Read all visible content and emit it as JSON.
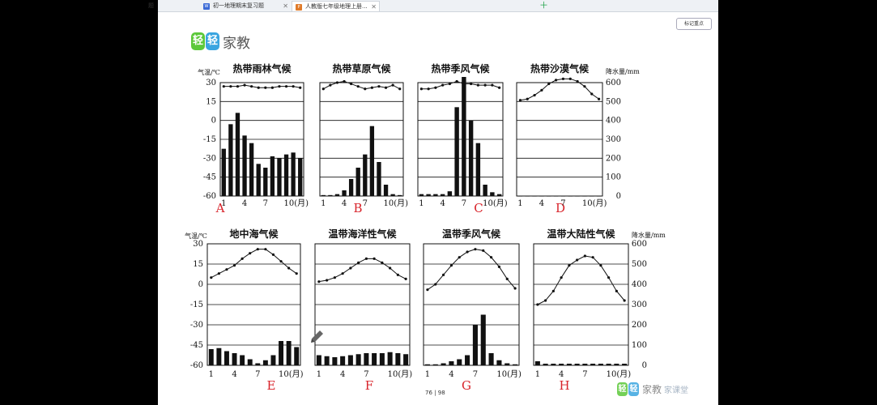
{
  "tabs": [
    {
      "label": "初一地理期末复习题",
      "icon": "W"
    },
    {
      "label": "人教版七年级地理上册...",
      "icon": "P"
    }
  ],
  "first_tab_fragment": "题",
  "mark_button_label": "标记重点",
  "logo": {
    "badge1": "轻",
    "badge2": "轻",
    "text": "家教"
  },
  "footer_logo": {
    "badge1": "轻",
    "badge2": "轻",
    "text": "家教",
    "text2": "家课堂"
  },
  "page_number": {
    "current": "76",
    "separator": "|",
    "total": "98"
  },
  "temp_label": "气温/℃",
  "precip_label": "降水量/mm",
  "month_unit_label": "10(月)",
  "temp_ticks": [
    "30",
    "15",
    "0",
    "-15",
    "-30",
    "-45",
    "-60"
  ],
  "precip_ticks": [
    "600",
    "500",
    "400",
    "300",
    "200",
    "100",
    "0"
  ],
  "month_ticks": [
    "1",
    "4",
    "7",
    "10(月)"
  ],
  "chart_data": [
    {
      "type": "bar",
      "title": "热带雨林气候",
      "letter": "A",
      "x": [
        1,
        2,
        3,
        4,
        5,
        6,
        7,
        8,
        9,
        10,
        11,
        12
      ],
      "temperature": [
        27,
        27,
        27,
        28,
        27,
        26,
        26,
        26,
        27,
        27,
        27,
        26
      ],
      "precipitation": [
        250,
        380,
        440,
        320,
        280,
        170,
        150,
        210,
        200,
        220,
        230,
        200
      ],
      "ylim_temp": [
        -60,
        30
      ],
      "ylim_precip": [
        0,
        600
      ]
    },
    {
      "type": "bar",
      "title": "热带草原气候",
      "letter": "B",
      "x": [
        1,
        2,
        3,
        4,
        5,
        6,
        7,
        8,
        9,
        10,
        11,
        12
      ],
      "temperature": [
        25,
        28,
        30,
        31,
        29,
        27,
        25,
        26,
        27,
        26,
        28,
        25
      ],
      "precipitation": [
        5,
        5,
        10,
        30,
        90,
        150,
        220,
        370,
        180,
        60,
        10,
        5
      ],
      "ylim_temp": [
        -60,
        30
      ],
      "ylim_precip": [
        0,
        600
      ]
    },
    {
      "type": "bar",
      "title": "热带季风气候",
      "letter": "C",
      "x": [
        1,
        2,
        3,
        4,
        5,
        6,
        7,
        8,
        9,
        10,
        11,
        12
      ],
      "temperature": [
        25,
        25,
        26,
        28,
        29,
        31,
        29,
        29,
        28,
        28,
        28,
        26
      ],
      "precipitation": [
        10,
        10,
        10,
        10,
        25,
        470,
        630,
        400,
        280,
        60,
        20,
        10
      ],
      "ylim_temp": [
        -60,
        30
      ],
      "ylim_precip": [
        0,
        600
      ]
    },
    {
      "type": "bar",
      "title": "热带沙漠气候",
      "letter": "D",
      "x": [
        1,
        2,
        3,
        4,
        5,
        6,
        7,
        8,
        9,
        10,
        11,
        12
      ],
      "temperature": [
        16,
        17,
        20,
        24,
        29,
        32,
        33,
        33,
        31,
        27,
        21,
        17
      ],
      "precipitation": [
        1,
        1,
        1,
        1,
        1,
        1,
        1,
        1,
        1,
        1,
        1,
        1
      ],
      "ylim_temp": [
        -60,
        30
      ],
      "ylim_precip": [
        0,
        600
      ]
    },
    {
      "type": "bar",
      "title": "地中海气候",
      "letter": "E",
      "x": [
        1,
        2,
        3,
        4,
        5,
        6,
        7,
        8,
        9,
        10,
        11,
        12
      ],
      "temperature": [
        5,
        8,
        11,
        14,
        19,
        23,
        26,
        26,
        22,
        17,
        12,
        8
      ],
      "precipitation": [
        80,
        85,
        70,
        60,
        50,
        30,
        10,
        25,
        50,
        120,
        120,
        90
      ],
      "ylim_temp": [
        -60,
        30
      ],
      "ylim_precip": [
        0,
        600
      ]
    },
    {
      "type": "bar",
      "title": "温带海洋性气候",
      "letter": "F",
      "x": [
        1,
        2,
        3,
        4,
        5,
        6,
        7,
        8,
        9,
        10,
        11,
        12
      ],
      "temperature": [
        2,
        3,
        5,
        8,
        12,
        16,
        19,
        19,
        16,
        12,
        7,
        4
      ],
      "precipitation": [
        50,
        45,
        40,
        45,
        50,
        55,
        60,
        60,
        60,
        65,
        60,
        55
      ],
      "ylim_temp": [
        -60,
        30
      ],
      "ylim_precip": [
        0,
        600
      ]
    },
    {
      "type": "bar",
      "title": "温带季风气候",
      "letter": "G",
      "x": [
        1,
        2,
        3,
        4,
        5,
        6,
        7,
        8,
        9,
        10,
        11,
        12
      ],
      "temperature": [
        -4,
        0,
        7,
        14,
        20,
        24,
        26,
        25,
        20,
        13,
        4,
        -3
      ],
      "precipitation": [
        5,
        5,
        10,
        20,
        30,
        50,
        200,
        250,
        60,
        25,
        10,
        5
      ],
      "ylim_temp": [
        -60,
        30
      ],
      "ylim_precip": [
        0,
        600
      ]
    },
    {
      "type": "bar",
      "title": "温带大陆性气候",
      "letter": "H",
      "x": [
        1,
        2,
        3,
        4,
        5,
        6,
        7,
        8,
        9,
        10,
        11,
        12
      ],
      "temperature": [
        -15,
        -12,
        -5,
        5,
        14,
        18,
        21,
        20,
        14,
        5,
        -5,
        -12
      ],
      "precipitation": [
        20,
        8,
        8,
        8,
        8,
        8,
        8,
        8,
        8,
        8,
        8,
        8
      ],
      "ylim_temp": [
        -60,
        30
      ],
      "ylim_precip": [
        0,
        600
      ]
    }
  ]
}
